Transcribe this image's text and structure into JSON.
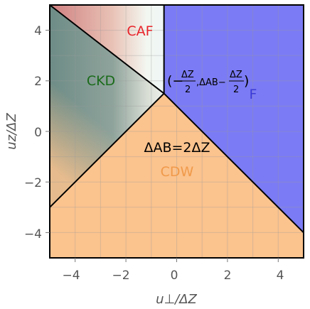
{
  "chart_data": {
    "type": "phase-diagram",
    "xlabel": "u⊥/ΔZ",
    "ylabel": "uz/ΔZ",
    "xlim": [
      -5,
      5
    ],
    "ylim": [
      -5,
      5
    ],
    "xticks": [
      "−4",
      "−2",
      "0",
      "2",
      "4"
    ],
    "yticks": [
      "4",
      "2",
      "0",
      "−2",
      "−4"
    ],
    "grid": true,
    "regions": [
      {
        "name": "CAF",
        "color": "#e8242a"
      },
      {
        "name": "CKD",
        "color": "#1a6b1a"
      },
      {
        "name": "F",
        "color": "#3b3bd6"
      },
      {
        "name": "CDW",
        "color": "#f09a4a"
      }
    ],
    "fill_colors": {
      "caf": "#d98a8a",
      "ckd": "#6f8f86",
      "f": "#7b7bf5",
      "cdw": "#fbc38e"
    },
    "triple_point": {
      "x": -0.5,
      "y": 1.5
    },
    "boundaries": [
      {
        "from": [
          -5,
          5
        ],
        "to": [
          -0.5,
          1.5
        ]
      },
      {
        "from": [
          -0.5,
          5
        ],
        "to": [
          -0.5,
          1.5
        ]
      },
      {
        "from": [
          -5,
          -3
        ],
        "to": [
          -0.5,
          1.5
        ]
      },
      {
        "from": [
          -0.5,
          1.5
        ],
        "to": [
          5,
          -4
        ]
      }
    ],
    "annotations": {
      "point_open": "(−",
      "point_dz1": "ΔZ",
      "point_two1": "2",
      "point_mid": ",ΔAB−",
      "point_dz2": "ΔZ",
      "point_two2": "2",
      "point_close": ")",
      "condition": "ΔAB=2ΔZ"
    }
  }
}
